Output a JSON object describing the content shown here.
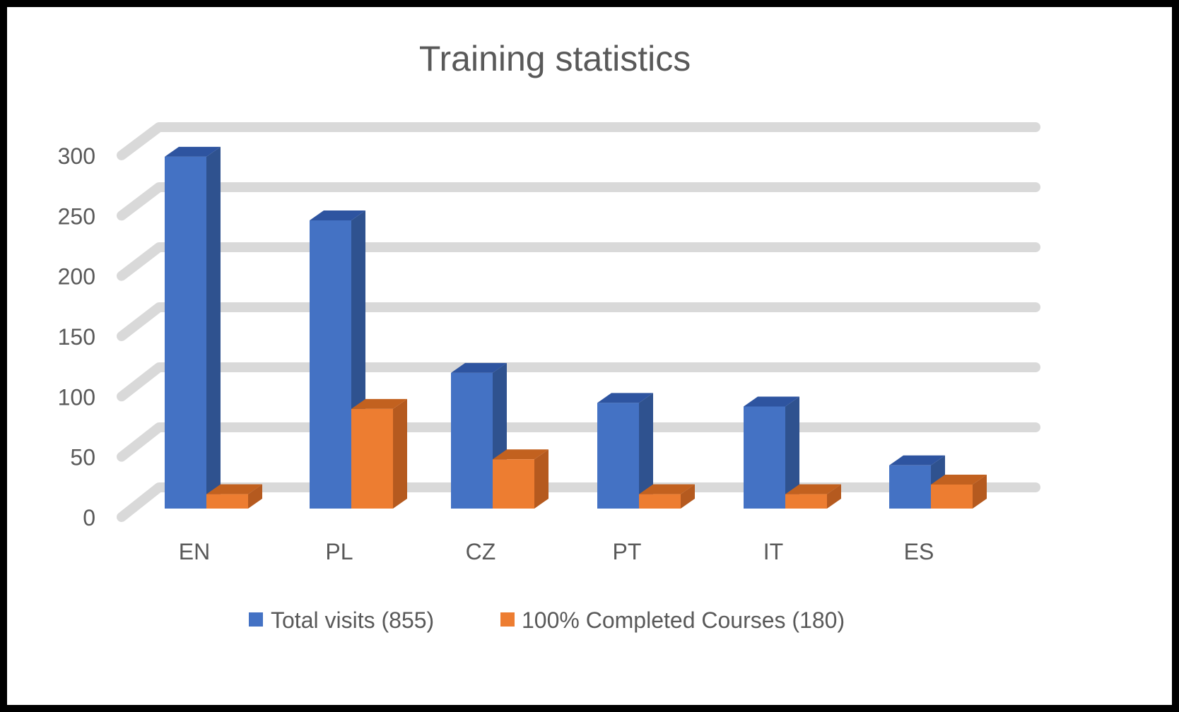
{
  "chart_data": {
    "type": "bar",
    "style": "3d-clustered-column",
    "title": "Training statistics",
    "categories": [
      "EN",
      "PL",
      "CZ",
      "PT",
      "IT",
      "ES"
    ],
    "series": [
      {
        "name": "Total visits (855)",
        "color": "#4472c4",
        "values": [
          293,
          240,
          113,
          88,
          85,
          36
        ]
      },
      {
        "name": "100% Completed Courses (180)",
        "color": "#ed7d31",
        "values": [
          12,
          83,
          41,
          12,
          12,
          20
        ]
      }
    ],
    "yticks": [
      0,
      50,
      100,
      150,
      200,
      250,
      300
    ],
    "ylim": [
      0,
      300
    ],
    "grid": true,
    "legend": "bottom"
  }
}
